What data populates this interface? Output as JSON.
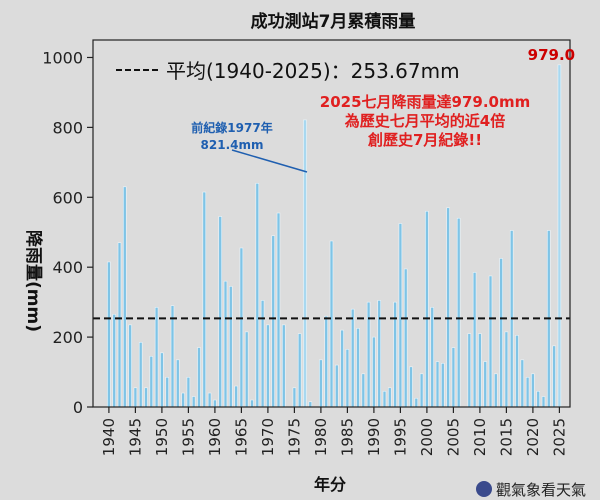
{
  "chart_data": {
    "type": "bar",
    "title": "成功測站7月累積雨量",
    "xlabel": "年分",
    "ylabel": "降雨量(mm)",
    "ylim": [
      0,
      1050
    ],
    "xlim": [
      1937,
      2027
    ],
    "yticks": [
      0,
      200,
      400,
      600,
      800,
      1000
    ],
    "xticks": [
      1940,
      1945,
      1950,
      1955,
      1960,
      1965,
      1970,
      1975,
      1980,
      1985,
      1990,
      1995,
      2000,
      2005,
      2010,
      2015,
      2020,
      2025
    ],
    "grid": false,
    "bar_color": "#7fc4e6",
    "bar_highlight_color": "#a8d8f0",
    "mean_line": {
      "value": 253.67,
      "label": "平均(1940-2025)：253.67mm",
      "color": "#111111"
    },
    "peak_label": {
      "text": "979.0",
      "color": "#cc0000"
    },
    "annotations": [
      {
        "lines": [
          "前紀錄1977年",
          "821.4mm"
        ],
        "color": "#1f5fb0"
      },
      {
        "lines": [
          "2025七月降雨量達979.0mm",
          "為歷史七月平均的近4倍",
          "創歷史7月紀錄!!"
        ],
        "color": "#e02020"
      }
    ],
    "years": [
      1940,
      1941,
      1942,
      1943,
      1944,
      1945,
      1946,
      1947,
      1948,
      1949,
      1950,
      1951,
      1952,
      1953,
      1954,
      1955,
      1956,
      1957,
      1958,
      1959,
      1960,
      1961,
      1962,
      1963,
      1964,
      1965,
      1966,
      1967,
      1968,
      1969,
      1970,
      1971,
      1972,
      1973,
      1974,
      1975,
      1976,
      1977,
      1978,
      1979,
      1980,
      1981,
      1982,
      1983,
      1984,
      1985,
      1986,
      1987,
      1988,
      1989,
      1990,
      1991,
      1992,
      1993,
      1994,
      1995,
      1996,
      1997,
      1998,
      1999,
      2000,
      2001,
      2002,
      2003,
      2004,
      2005,
      2006,
      2007,
      2008,
      2009,
      2010,
      2011,
      2012,
      2013,
      2014,
      2015,
      2016,
      2017,
      2018,
      2019,
      2020,
      2021,
      2022,
      2023,
      2024,
      2025
    ],
    "values": [
      415,
      265,
      470,
      630,
      235,
      55,
      185,
      55,
      145,
      285,
      155,
      85,
      290,
      135,
      40,
      85,
      30,
      170,
      615,
      40,
      20,
      545,
      360,
      345,
      60,
      455,
      215,
      20,
      640,
      305,
      235,
      490,
      555,
      235,
      0,
      55,
      210,
      821.4,
      15,
      0,
      135,
      260,
      475,
      120,
      220,
      165,
      280,
      225,
      95,
      300,
      200,
      305,
      45,
      55,
      300,
      525,
      395,
      115,
      25,
      95,
      560,
      285,
      130,
      125,
      570,
      170,
      540,
      0,
      210,
      385,
      210,
      130,
      375,
      95,
      425,
      215,
      505,
      205,
      135,
      85,
      95,
      45,
      30,
      505,
      175,
      979.0
    ]
  },
  "watermark": {
    "text": "觀氣象看天氣"
  }
}
